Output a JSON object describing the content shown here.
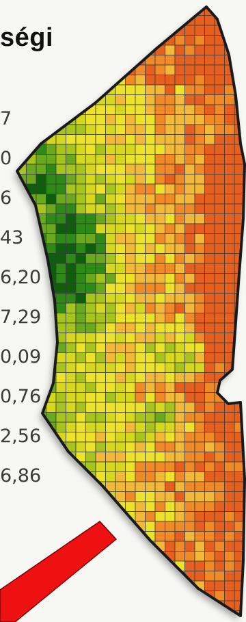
{
  "title": "ségi",
  "legend": {
    "values": [
      "7",
      "0",
      "6",
      "43",
      "6,20",
      "7,29",
      "0,09",
      "0,76",
      "2,56",
      "6,86"
    ]
  },
  "map": {
    "palette": [
      "#0e5e0e",
      "#2e8a16",
      "#6aa820",
      "#a7c41c",
      "#d6d81e",
      "#ece22a",
      "#f2b838",
      "#ef8a26",
      "#e55f1e"
    ],
    "boundary_color": "#1a1a1a",
    "grid_line_color": "#3b3b3b"
  },
  "arrow": {
    "color": "#ee1111"
  }
}
